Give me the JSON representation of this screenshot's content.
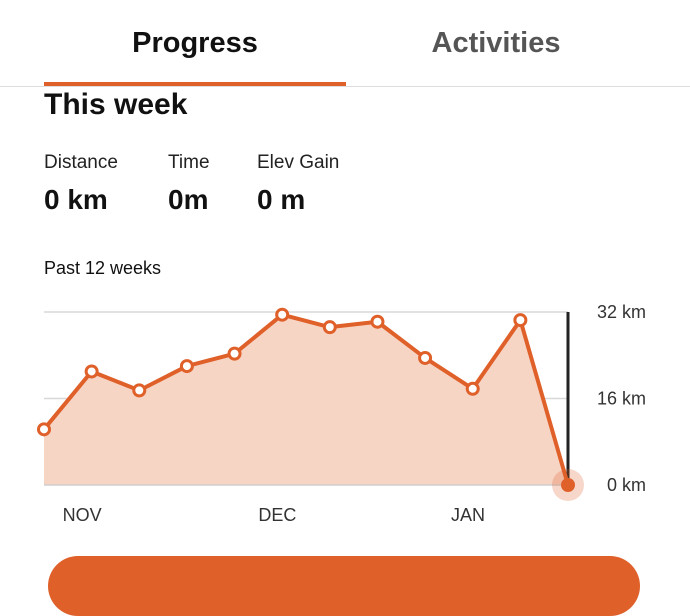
{
  "tabs": [
    {
      "label": "Progress",
      "selected": true
    },
    {
      "label": "Activities",
      "selected": false
    }
  ],
  "week": {
    "title": "This week",
    "stats": [
      {
        "label": "Distance",
        "value": "0 km"
      },
      {
        "label": "Time",
        "value": "0m"
      },
      {
        "label": "Elev Gain",
        "value": "0 m"
      }
    ]
  },
  "chart_label": "Past 12 weeks",
  "colors": {
    "accent": "#e0602a",
    "fill": "#f7d5c5"
  },
  "chart_data": {
    "type": "area",
    "x_ticks": [
      "NOV",
      "DEC",
      "JAN"
    ],
    "y_ticks": [
      "32 km",
      "16 km",
      "0 km"
    ],
    "ylim": [
      0,
      32
    ],
    "unit": "km",
    "values": [
      10.3,
      21.0,
      17.5,
      22.0,
      24.3,
      31.5,
      29.2,
      30.2,
      23.5,
      17.8,
      30.5,
      0
    ],
    "grid": true,
    "highlight_last": true
  }
}
